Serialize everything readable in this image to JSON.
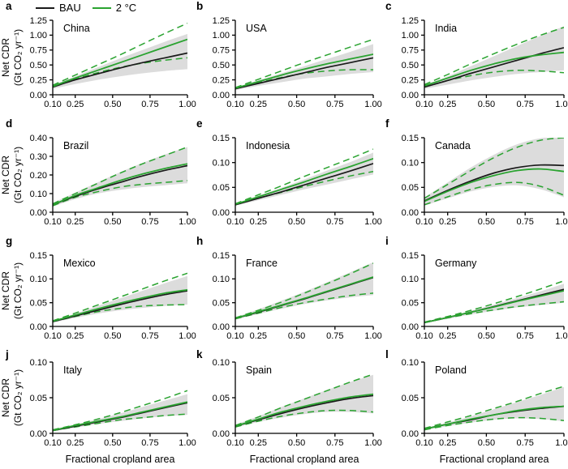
{
  "figure": {
    "legend": [
      {
        "label": "BAU",
        "color": "#1a1a1a",
        "style": "solid"
      },
      {
        "label": "2 °C",
        "color": "#2aa330",
        "style": "solid"
      }
    ],
    "colors": {
      "bau_line": "#1a1a1a",
      "two_c_line": "#2aa330",
      "ci_dashed": "#2aa330",
      "uncertainty_band": "#dcdcdc",
      "axis": "#000000"
    }
  },
  "chart_data": {
    "type": "line",
    "xlabel": "Fractional cropland area",
    "ylabel": [
      "Net CDR",
      "(Gt CO₂ yr⁻¹)"
    ],
    "legend_position": "top-left",
    "grid": false,
    "x": [
      0.1,
      0.25,
      0.4,
      0.55,
      0.7,
      0.85,
      1.0
    ],
    "xticks": [
      0.1,
      0.25,
      0.5,
      0.75,
      1.0
    ],
    "xlim": [
      0.1,
      1.0
    ],
    "series_names": [
      "BAU",
      "2 °C",
      "2 °C upper CI (dashed)",
      "2 °C lower CI (dashed)",
      "BAU band low",
      "BAU band high"
    ],
    "panels": [
      {
        "letter": "a",
        "country": "China",
        "ylim": [
          0,
          1.25
        ],
        "yticks": [
          0,
          0.25,
          0.5,
          0.75,
          1.0,
          1.25
        ],
        "bau": [
          0.13,
          0.25,
          0.35,
          0.45,
          0.54,
          0.62,
          0.7
        ],
        "two_c": [
          0.14,
          0.28,
          0.41,
          0.54,
          0.67,
          0.8,
          0.93
        ],
        "two_c_upper": [
          0.16,
          0.33,
          0.5,
          0.67,
          0.85,
          1.03,
          1.2
        ],
        "two_c_lower": [
          0.13,
          0.26,
          0.37,
          0.46,
          0.53,
          0.58,
          0.62
        ],
        "band_low": [
          0.1,
          0.18,
          0.25,
          0.31,
          0.36,
          0.4,
          0.43
        ],
        "band_high": [
          0.16,
          0.31,
          0.46,
          0.61,
          0.75,
          0.89,
          1.02
        ]
      },
      {
        "letter": "b",
        "country": "USA",
        "ylim": [
          0,
          1.25
        ],
        "yticks": [
          0,
          0.25,
          0.5,
          0.75,
          1.0,
          1.25
        ],
        "bau": [
          0.1,
          0.19,
          0.28,
          0.37,
          0.46,
          0.54,
          0.62
        ],
        "two_c": [
          0.11,
          0.22,
          0.33,
          0.43,
          0.52,
          0.6,
          0.68
        ],
        "two_c_upper": [
          0.12,
          0.26,
          0.4,
          0.54,
          0.67,
          0.8,
          0.93
        ],
        "two_c_lower": [
          0.1,
          0.2,
          0.29,
          0.36,
          0.4,
          0.42,
          0.42
        ],
        "band_low": [
          0.08,
          0.15,
          0.21,
          0.27,
          0.31,
          0.35,
          0.38
        ],
        "band_high": [
          0.12,
          0.24,
          0.36,
          0.48,
          0.6,
          0.72,
          0.85
        ]
      },
      {
        "letter": "c",
        "country": "India",
        "ylim": [
          0,
          1.25
        ],
        "yticks": [
          0,
          0.25,
          0.5,
          0.75,
          1.0,
          1.25
        ],
        "bau": [
          0.13,
          0.24,
          0.36,
          0.47,
          0.58,
          0.69,
          0.79
        ],
        "two_c": [
          0.15,
          0.28,
          0.41,
          0.52,
          0.61,
          0.67,
          0.71
        ],
        "two_c_upper": [
          0.17,
          0.34,
          0.52,
          0.69,
          0.85,
          1.0,
          1.13
        ],
        "two_c_lower": [
          0.13,
          0.24,
          0.32,
          0.38,
          0.41,
          0.4,
          0.37
        ],
        "band_low": [
          0.1,
          0.17,
          0.24,
          0.3,
          0.35,
          0.38,
          0.41
        ],
        "band_high": [
          0.16,
          0.31,
          0.48,
          0.65,
          0.82,
          0.99,
          1.15
        ]
      },
      {
        "letter": "d",
        "country": "Brazil",
        "ylim": [
          0,
          0.4
        ],
        "yticks": [
          0,
          0.1,
          0.2,
          0.3,
          0.4
        ],
        "bau": [
          0.04,
          0.085,
          0.125,
          0.16,
          0.195,
          0.225,
          0.25
        ],
        "two_c": [
          0.04,
          0.09,
          0.13,
          0.17,
          0.205,
          0.235,
          0.26
        ],
        "two_c_upper": [
          0.045,
          0.1,
          0.155,
          0.21,
          0.26,
          0.305,
          0.35
        ],
        "two_c_lower": [
          0.035,
          0.08,
          0.11,
          0.135,
          0.15,
          0.16,
          0.17
        ],
        "band_low": [
          0.03,
          0.07,
          0.1,
          0.12,
          0.135,
          0.145,
          0.155
        ],
        "band_high": [
          0.05,
          0.105,
          0.16,
          0.215,
          0.265,
          0.31,
          0.35
        ]
      },
      {
        "letter": "e",
        "country": "Indonesia",
        "ylim": [
          0,
          0.15
        ],
        "yticks": [
          0,
          0.05,
          0.1,
          0.15
        ],
        "bau": [
          0.015,
          0.028,
          0.041,
          0.055,
          0.069,
          0.083,
          0.098
        ],
        "two_c": [
          0.016,
          0.031,
          0.046,
          0.061,
          0.077,
          0.092,
          0.108
        ],
        "two_c_upper": [
          0.017,
          0.035,
          0.053,
          0.072,
          0.09,
          0.108,
          0.127
        ],
        "two_c_lower": [
          0.015,
          0.028,
          0.04,
          0.052,
          0.063,
          0.073,
          0.082
        ],
        "band_low": [
          0.013,
          0.024,
          0.035,
          0.046,
          0.056,
          0.066,
          0.076
        ],
        "band_high": [
          0.017,
          0.033,
          0.049,
          0.066,
          0.084,
          0.101,
          0.12
        ]
      },
      {
        "letter": "f",
        "country": "Canada",
        "ylim": [
          0,
          0.15
        ],
        "yticks": [
          0,
          0.05,
          0.1,
          0.15
        ],
        "bau": [
          0.023,
          0.044,
          0.063,
          0.079,
          0.09,
          0.095,
          0.094
        ],
        "two_c": [
          0.022,
          0.042,
          0.06,
          0.074,
          0.084,
          0.087,
          0.082
        ],
        "two_c_upper": [
          0.028,
          0.056,
          0.084,
          0.11,
          0.131,
          0.145,
          0.15
        ],
        "two_c_lower": [
          0.015,
          0.031,
          0.046,
          0.056,
          0.06,
          0.052,
          0.034
        ],
        "band_low": [
          0.013,
          0.028,
          0.042,
          0.051,
          0.054,
          0.046,
          0.03
        ],
        "band_high": [
          0.03,
          0.06,
          0.09,
          0.116,
          0.137,
          0.149,
          0.152
        ]
      },
      {
        "letter": "g",
        "country": "Mexico",
        "ylim": [
          0,
          0.15
        ],
        "yticks": [
          0,
          0.05,
          0.1,
          0.15
        ],
        "bau": [
          0.01,
          0.022,
          0.034,
          0.046,
          0.057,
          0.067,
          0.075
        ],
        "two_c": [
          0.011,
          0.024,
          0.037,
          0.049,
          0.06,
          0.07,
          0.077
        ],
        "two_c_upper": [
          0.012,
          0.028,
          0.045,
          0.062,
          0.079,
          0.096,
          0.112
        ],
        "two_c_lower": [
          0.01,
          0.021,
          0.031,
          0.038,
          0.043,
          0.045,
          0.046
        ],
        "band_low": [
          0.008,
          0.018,
          0.027,
          0.034,
          0.039,
          0.043,
          0.046
        ],
        "band_high": [
          0.012,
          0.027,
          0.043,
          0.059,
          0.075,
          0.091,
          0.106
        ]
      },
      {
        "letter": "h",
        "country": "France",
        "ylim": [
          0,
          0.15
        ],
        "yticks": [
          0,
          0.05,
          0.1,
          0.15
        ],
        "bau": [
          0.017,
          0.03,
          0.044,
          0.058,
          0.073,
          0.088,
          0.103
        ],
        "two_c": [
          0.017,
          0.031,
          0.045,
          0.059,
          0.074,
          0.089,
          0.104
        ],
        "two_c_upper": [
          0.018,
          0.034,
          0.051,
          0.07,
          0.09,
          0.111,
          0.133
        ],
        "two_c_lower": [
          0.016,
          0.028,
          0.04,
          0.05,
          0.058,
          0.065,
          0.07
        ],
        "band_low": [
          0.015,
          0.026,
          0.037,
          0.047,
          0.055,
          0.061,
          0.066
        ],
        "band_high": [
          0.019,
          0.036,
          0.054,
          0.073,
          0.093,
          0.114,
          0.135
        ]
      },
      {
        "letter": "i",
        "country": "Germany",
        "ylim": [
          0,
          0.15
        ],
        "yticks": [
          0,
          0.05,
          0.1,
          0.15
        ],
        "bau": [
          0.008,
          0.019,
          0.03,
          0.042,
          0.054,
          0.066,
          0.078
        ],
        "two_c": [
          0.008,
          0.019,
          0.03,
          0.041,
          0.053,
          0.064,
          0.075
        ],
        "two_c_upper": [
          0.009,
          0.021,
          0.034,
          0.048,
          0.063,
          0.079,
          0.096
        ],
        "two_c_lower": [
          0.008,
          0.018,
          0.027,
          0.035,
          0.042,
          0.047,
          0.052
        ],
        "band_low": [
          0.007,
          0.016,
          0.025,
          0.033,
          0.04,
          0.045,
          0.05
        ],
        "band_high": [
          0.009,
          0.02,
          0.033,
          0.046,
          0.06,
          0.074,
          0.09
        ]
      },
      {
        "letter": "j",
        "country": "Italy",
        "ylim": [
          0,
          0.1
        ],
        "yticks": [
          0,
          0.05,
          0.1
        ],
        "bau": [
          0.004,
          0.01,
          0.016,
          0.022,
          0.029,
          0.036,
          0.043
        ],
        "two_c": [
          0.004,
          0.011,
          0.017,
          0.023,
          0.03,
          0.037,
          0.044
        ],
        "two_c_upper": [
          0.005,
          0.012,
          0.02,
          0.029,
          0.039,
          0.049,
          0.06
        ],
        "two_c_lower": [
          0.004,
          0.009,
          0.014,
          0.019,
          0.022,
          0.025,
          0.027
        ],
        "band_low": [
          0.003,
          0.008,
          0.013,
          0.017,
          0.021,
          0.024,
          0.026
        ],
        "band_high": [
          0.005,
          0.012,
          0.02,
          0.028,
          0.037,
          0.046,
          0.055
        ]
      },
      {
        "letter": "k",
        "country": "Spain",
        "ylim": [
          0,
          0.1
        ],
        "yticks": [
          0,
          0.05,
          0.1
        ],
        "bau": [
          0.01,
          0.019,
          0.028,
          0.036,
          0.043,
          0.049,
          0.053
        ],
        "two_c": [
          0.01,
          0.02,
          0.03,
          0.038,
          0.045,
          0.051,
          0.055
        ],
        "two_c_upper": [
          0.011,
          0.023,
          0.036,
          0.048,
          0.06,
          0.072,
          0.083
        ],
        "two_c_lower": [
          0.009,
          0.017,
          0.024,
          0.029,
          0.032,
          0.032,
          0.03
        ],
        "band_low": [
          0.008,
          0.016,
          0.022,
          0.027,
          0.03,
          0.03,
          0.028
        ],
        "band_high": [
          0.012,
          0.024,
          0.037,
          0.049,
          0.061,
          0.072,
          0.082
        ]
      },
      {
        "letter": "l",
        "country": "Poland",
        "ylim": [
          0,
          0.1
        ],
        "yticks": [
          0,
          0.05,
          0.1
        ],
        "bau": [
          0.006,
          0.013,
          0.019,
          0.026,
          0.031,
          0.035,
          0.038
        ],
        "two_c": [
          0.006,
          0.013,
          0.02,
          0.026,
          0.032,
          0.036,
          0.038
        ],
        "two_c_upper": [
          0.007,
          0.016,
          0.025,
          0.035,
          0.045,
          0.056,
          0.066
        ],
        "two_c_lower": [
          0.005,
          0.011,
          0.016,
          0.02,
          0.022,
          0.021,
          0.018
        ],
        "band_low": [
          0.005,
          0.01,
          0.015,
          0.019,
          0.021,
          0.02,
          0.017
        ],
        "band_high": [
          0.007,
          0.015,
          0.024,
          0.034,
          0.044,
          0.054,
          0.065
        ]
      }
    ]
  }
}
